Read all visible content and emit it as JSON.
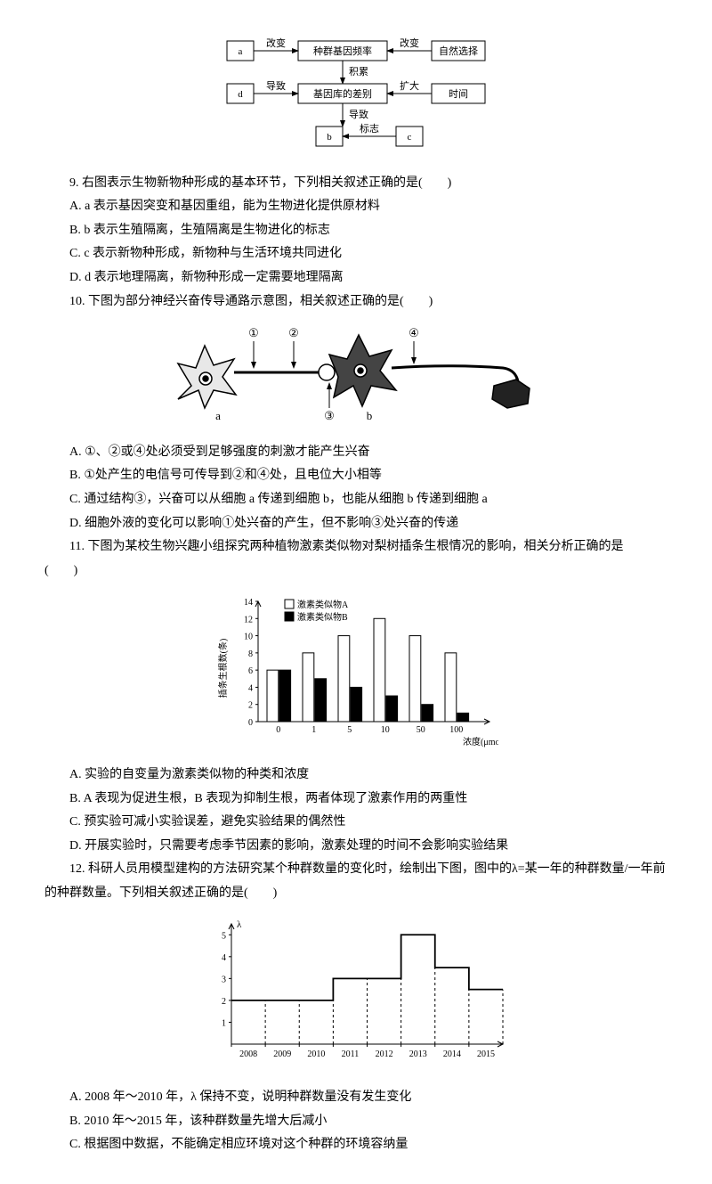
{
  "diagram9": {
    "boxes": {
      "a": "a",
      "freq": "种群基因频率",
      "natsel": "自然选择",
      "d": "d",
      "genepool": "基因库的差别",
      "time": "时间",
      "b": "b",
      "c": "c"
    },
    "labels": {
      "change1": "改变",
      "change2": "改变",
      "accum": "积累",
      "cause1": "导致",
      "expand": "扩大",
      "cause2": "导致",
      "mark": "标志"
    },
    "style": {
      "boxStroke": "#000000",
      "boxFill": "#ffffff",
      "arrowStroke": "#000000",
      "fontSize": 11
    }
  },
  "q9": {
    "stem": "9. 右图表示生物新物种形成的基本环节，下列相关叙述正确的是(　　)",
    "A": "A. a 表示基因突变和基因重组，能为生物进化提供原材料",
    "B": "B. b 表示生殖隔离，生殖隔离是生物进化的标志",
    "C": "C. c 表示新物种形成，新物种与生活环境共同进化",
    "D": "D. d 表示地理隔离，新物种形成一定需要地理隔离"
  },
  "q10": {
    "stem": "10. 下图为部分神经兴奋传导通路示意图，相关叙述正确的是(　　)",
    "A": "A. ①、②或④处必须受到足够强度的刺激才能产生兴奋",
    "B": "B. ①处产生的电信号可传导到②和④处，且电位大小相等",
    "C": "C. 通过结构③，兴奋可以从细胞 a 传递到细胞 b，也能从细胞 b 传递到细胞 a",
    "D": "D. 细胞外液的变化可以影响①处兴奋的产生，但不影响③处兴奋的传递",
    "labels": {
      "n1": "①",
      "n2": "②",
      "n3": "③",
      "n4": "④",
      "a": "a",
      "b": "b"
    }
  },
  "q11": {
    "stem": "11. 下图为某校生物兴趣小组探究两种植物激素类似物对梨树插条生根情况的影响，相关分析正确的是　(　　)",
    "A": "A. 实验的自变量为激素类似物的种类和浓度",
    "B": "B. A 表现为促进生根，B 表现为抑制生根，两者体现了激素作用的两重性",
    "C": "C. 预实验可减小实验误差，避免实验结果的偶然性",
    "D": "D. 开展实验时，只需要考虑季节因素的影响，激素处理的时间不会影响实验结果",
    "chart": {
      "type": "bar",
      "legend": {
        "A": "激素类似物A",
        "B": "激素类似物B"
      },
      "ylabel": "插条生根数(条)",
      "xlabel": "浓度(μmol/L)",
      "categories": [
        "0",
        "1",
        "5",
        "10",
        "50",
        "100"
      ],
      "seriesA": [
        6,
        8,
        10,
        12,
        10,
        8
      ],
      "seriesB": [
        6,
        5,
        4,
        3,
        2,
        1
      ],
      "ylim": [
        0,
        14
      ],
      "ytick_step": 2,
      "colorA": "#ffffff",
      "colorB": "#000000",
      "axisColor": "#000000",
      "fontSize": 10
    }
  },
  "q12": {
    "stem": "12. 科研人员用模型建构的方法研究某个种群数量的变化时，绘制出下图，图中的λ=某一年的种群数量/一年前的种群数量。下列相关叙述正确的是(　　)",
    "A": "A. 2008 年～2010 年，λ 保持不变，说明种群数量没有发生变化",
    "B": "B. 2010 年～2015 年，该种群数量先增大后减小",
    "C": "C. 根据图中数据，不能确定相应环境对这个种群的环境容纳量",
    "chart": {
      "type": "step",
      "ylabel": "λ",
      "years": [
        "2008",
        "2009",
        "2010",
        "2011",
        "2012",
        "2013",
        "2014",
        "2015"
      ],
      "values": [
        2,
        2,
        2,
        3,
        3,
        5,
        3.5,
        2.5
      ],
      "ylim": [
        0,
        5.5
      ],
      "yticks": [
        1,
        2,
        3,
        4,
        5
      ],
      "axisColor": "#000000",
      "lineColor": "#000000",
      "fontSize": 10
    }
  }
}
